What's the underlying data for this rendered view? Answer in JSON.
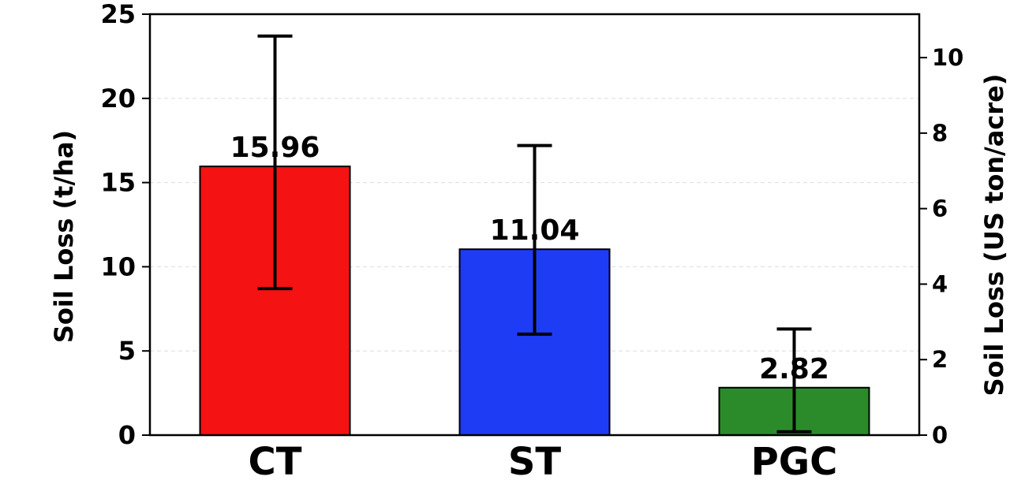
{
  "chart_data": {
    "type": "bar",
    "categories": [
      "CT",
      "ST",
      "PGC"
    ],
    "values": [
      15.96,
      11.04,
      2.82
    ],
    "value_labels": [
      "15.96",
      "11.04",
      "2.82"
    ],
    "error_low": [
      8.7,
      6.0,
      0.2
    ],
    "error_high": [
      23.7,
      17.2,
      6.3
    ],
    "colors": [
      "#f41212",
      "#1e3cf4",
      "#2b8b2b"
    ],
    "ylabel": "Soil Loss (t/ha)",
    "ylabel_right": "Soil Loss (US ton/acre)",
    "ylim": [
      0,
      25
    ],
    "ylim_right": [
      0,
      11.15
    ],
    "yticks": [
      "0",
      "5",
      "10",
      "15",
      "20",
      "25"
    ],
    "yticks_right": [
      "0",
      "2",
      "4",
      "6",
      "8",
      "10"
    ],
    "grid": true
  }
}
